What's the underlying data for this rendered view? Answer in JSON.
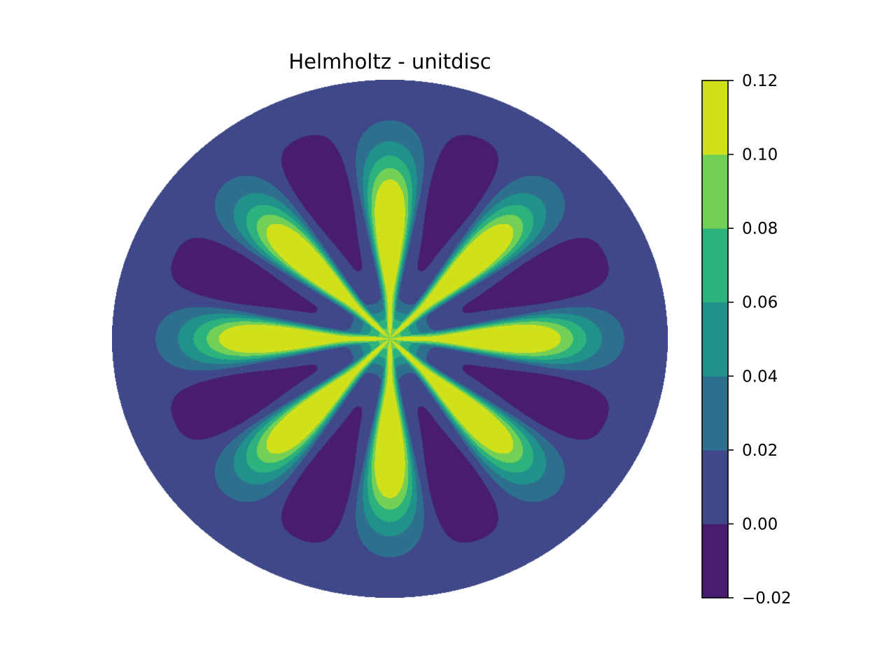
{
  "chart_data": {
    "type": "contour",
    "title": "Helmholtz - unitdisc",
    "domain": "unit disc",
    "pattern": {
      "petals": 8,
      "petal_directions_deg": [
        0,
        45,
        90,
        135,
        180,
        225,
        270,
        315
      ],
      "center_value_band": [
        0.08,
        0.1
      ],
      "petal_peak_band": [
        0.1,
        0.12
      ],
      "negative_lobes": 8,
      "negative_lobe_directions_deg": [
        22.5,
        67.5,
        112.5,
        157.5,
        202.5,
        247.5,
        292.5,
        337.5
      ],
      "negative_lobe_band": [
        -0.02,
        0.0
      ],
      "boundary_band": [
        0.0,
        0.02
      ]
    },
    "colorbar": {
      "levels": [
        -0.02,
        0.0,
        0.02,
        0.04,
        0.06,
        0.08,
        0.1,
        0.12
      ],
      "tick_labels": [
        "−0.02",
        "0.00",
        "0.02",
        "0.04",
        "0.06",
        "0.08",
        "0.10",
        "0.12"
      ],
      "colors": [
        "#481c6e",
        "#3f4889",
        "#2e6f8e",
        "#21918c",
        "#2db27d",
        "#73d056",
        "#d0e11c"
      ]
    }
  }
}
